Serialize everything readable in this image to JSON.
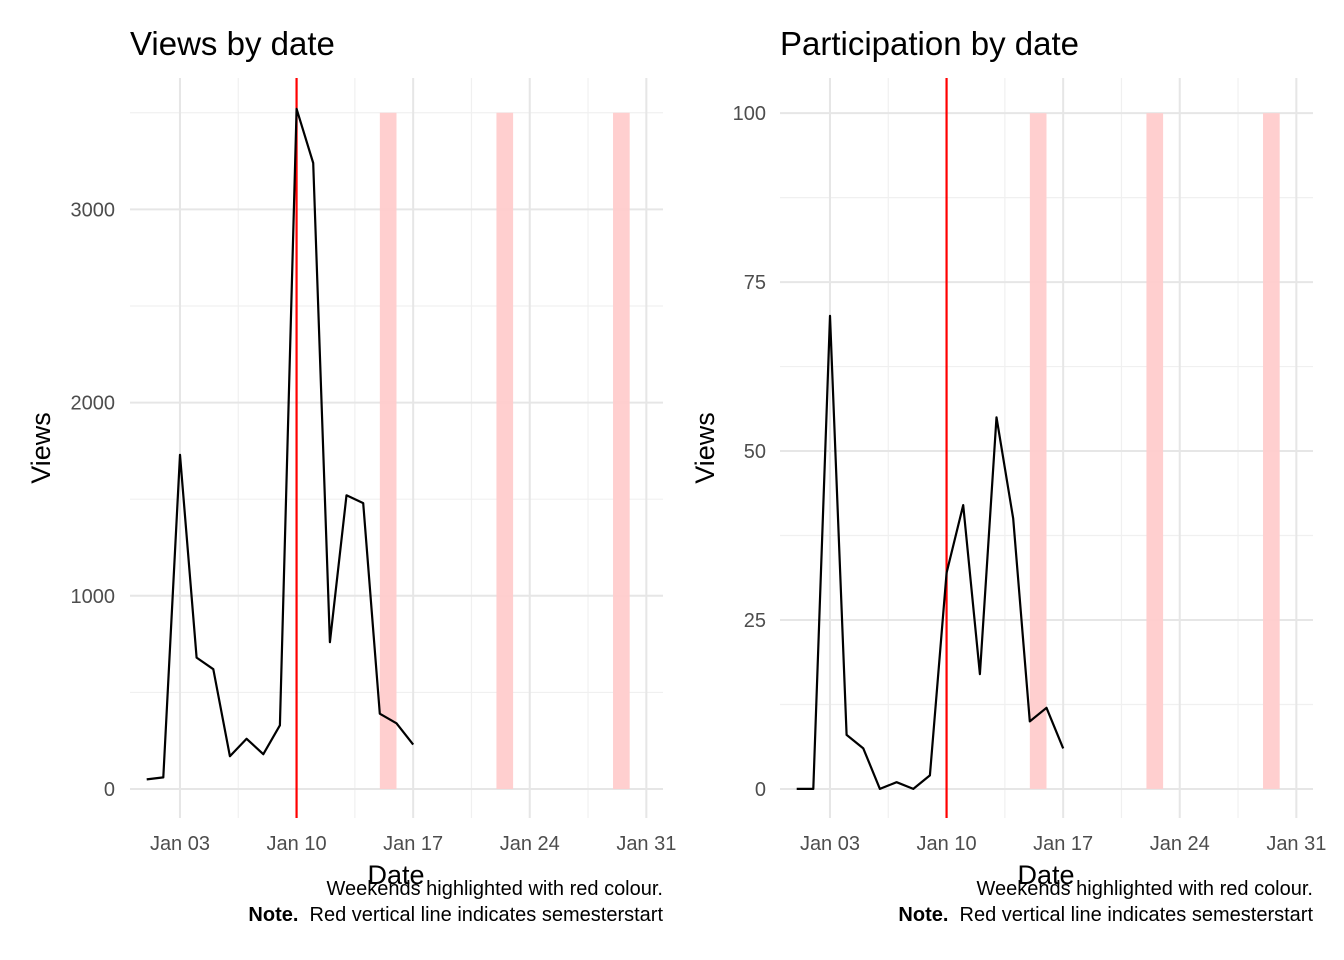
{
  "chart_data": [
    {
      "type": "line",
      "title": "Views by date",
      "xlabel": "Date",
      "ylabel": "Views",
      "x_tick_labels": [
        "Jan 03",
        "Jan 10",
        "Jan 17",
        "Jan 24",
        "Jan 31"
      ],
      "y_tick_labels": [
        "0",
        "1000",
        "2000",
        "3000"
      ],
      "ylim": [
        -150,
        3680
      ],
      "xlim": [
        "2020-12-31",
        "2021-02-01"
      ],
      "x": [
        "2021-01-01",
        "2021-01-02",
        "2021-01-03",
        "2021-01-04",
        "2021-01-05",
        "2021-01-06",
        "2021-01-07",
        "2021-01-08",
        "2021-01-09",
        "2021-01-10",
        "2021-01-11",
        "2021-01-12",
        "2021-01-13",
        "2021-01-14",
        "2021-01-15",
        "2021-01-16",
        "2021-01-17"
      ],
      "series": [
        {
          "values": [
            50,
            60,
            1730,
            680,
            620,
            170,
            260,
            180,
            330,
            3520,
            3240,
            760,
            1520,
            1480,
            390,
            340,
            230
          ]
        }
      ],
      "vline": {
        "x": "2021-01-10",
        "color": "#ff0000"
      },
      "weekend_bands": [
        [
          "2021-01-15",
          "2021-01-16"
        ],
        [
          "2021-01-22",
          "2021-01-23"
        ],
        [
          "2021-01-29",
          "2021-01-30"
        ]
      ],
      "weekend_band_top": 3500,
      "caption_line1": "Weekends highlighted with red colour.",
      "caption_note_label": "Note.",
      "caption_note_text": "  Red vertical line indicates semesterstart",
      "grid": true,
      "legend": "none"
    },
    {
      "type": "line",
      "title": "Participation by date",
      "xlabel": "Date",
      "ylabel": "Views",
      "x_tick_labels": [
        "Jan 03",
        "Jan 10",
        "Jan 17",
        "Jan 24",
        "Jan 31"
      ],
      "y_tick_labels": [
        "0",
        "25",
        "50",
        "75",
        "100"
      ],
      "ylim": [
        -4.3,
        105.2
      ],
      "xlim": [
        "2020-12-31",
        "2021-02-01"
      ],
      "x": [
        "2021-01-01",
        "2021-01-02",
        "2021-01-03",
        "2021-01-04",
        "2021-01-05",
        "2021-01-06",
        "2021-01-07",
        "2021-01-08",
        "2021-01-09",
        "2021-01-10",
        "2021-01-11",
        "2021-01-12",
        "2021-01-13",
        "2021-01-14",
        "2021-01-15",
        "2021-01-16",
        "2021-01-17"
      ],
      "series": [
        {
          "values": [
            0,
            0,
            70,
            8,
            6,
            0,
            1,
            0,
            2,
            32,
            42,
            17,
            55,
            40,
            10,
            12,
            6
          ]
        }
      ],
      "vline": {
        "x": "2021-01-10",
        "color": "#ff0000"
      },
      "weekend_bands": [
        [
          "2021-01-15",
          "2021-01-16"
        ],
        [
          "2021-01-22",
          "2021-01-23"
        ],
        [
          "2021-01-29",
          "2021-01-30"
        ]
      ],
      "weekend_band_top": 100,
      "caption_line1": "Weekends highlighted with red colour.",
      "caption_note_label": "Note.",
      "caption_note_text": "  Red vertical line indicates semesterstart",
      "grid": true,
      "legend": "none"
    }
  ],
  "colors": {
    "line": "#000000",
    "vline": "#ff0000",
    "weekend_band": "#ffcccc",
    "grid_major": "#e6e6e6",
    "grid_minor": "#f0f0f0"
  }
}
